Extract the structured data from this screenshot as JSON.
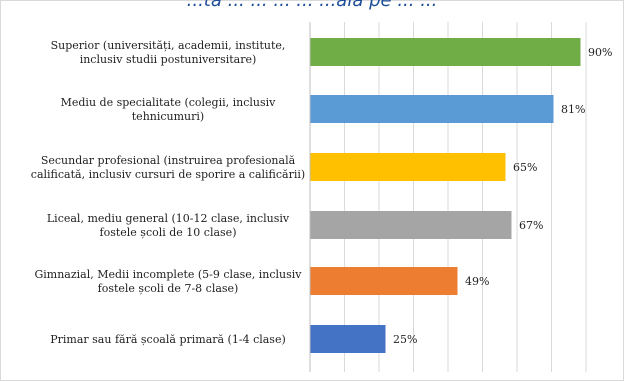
{
  "header": {
    "title_fragment": "...ta ... ... ... ... ...ală pe ... ..."
  },
  "chart_data": {
    "type": "bar",
    "orientation": "horizontal",
    "categories": [
      [
        "Superior (universități, academii, institute,",
        "inclusiv studii postuniversitare)"
      ],
      [
        "Mediu de specialitate (colegii, inclusiv",
        "tehnicumuri)"
      ],
      [
        "Secundar profesional (instruirea profesională",
        "calificată, inclusiv cursuri de sporire a calificării)"
      ],
      [
        "Liceal, mediu general (10-12 clase, inclusiv",
        "fostele școli de 10 clase)"
      ],
      [
        "Gimnazial, Medii incomplete (5-9 clase, inclusiv",
        "fostele școli de 7-8 clase)"
      ],
      [
        "Primar sau fără școală primară (1-4 clase)"
      ]
    ],
    "values": [
      90,
      81,
      65,
      67,
      49,
      25
    ],
    "value_labels": [
      "90%",
      "81%",
      "65%",
      "67%",
      "49%",
      "25%"
    ],
    "colors": [
      "#70ad47",
      "#5b9bd5",
      "#ffc000",
      "#a5a5a5",
      "#ed7d31",
      "#4472c4"
    ],
    "xlim": [
      0,
      100
    ],
    "grid": true,
    "legend": "none"
  }
}
